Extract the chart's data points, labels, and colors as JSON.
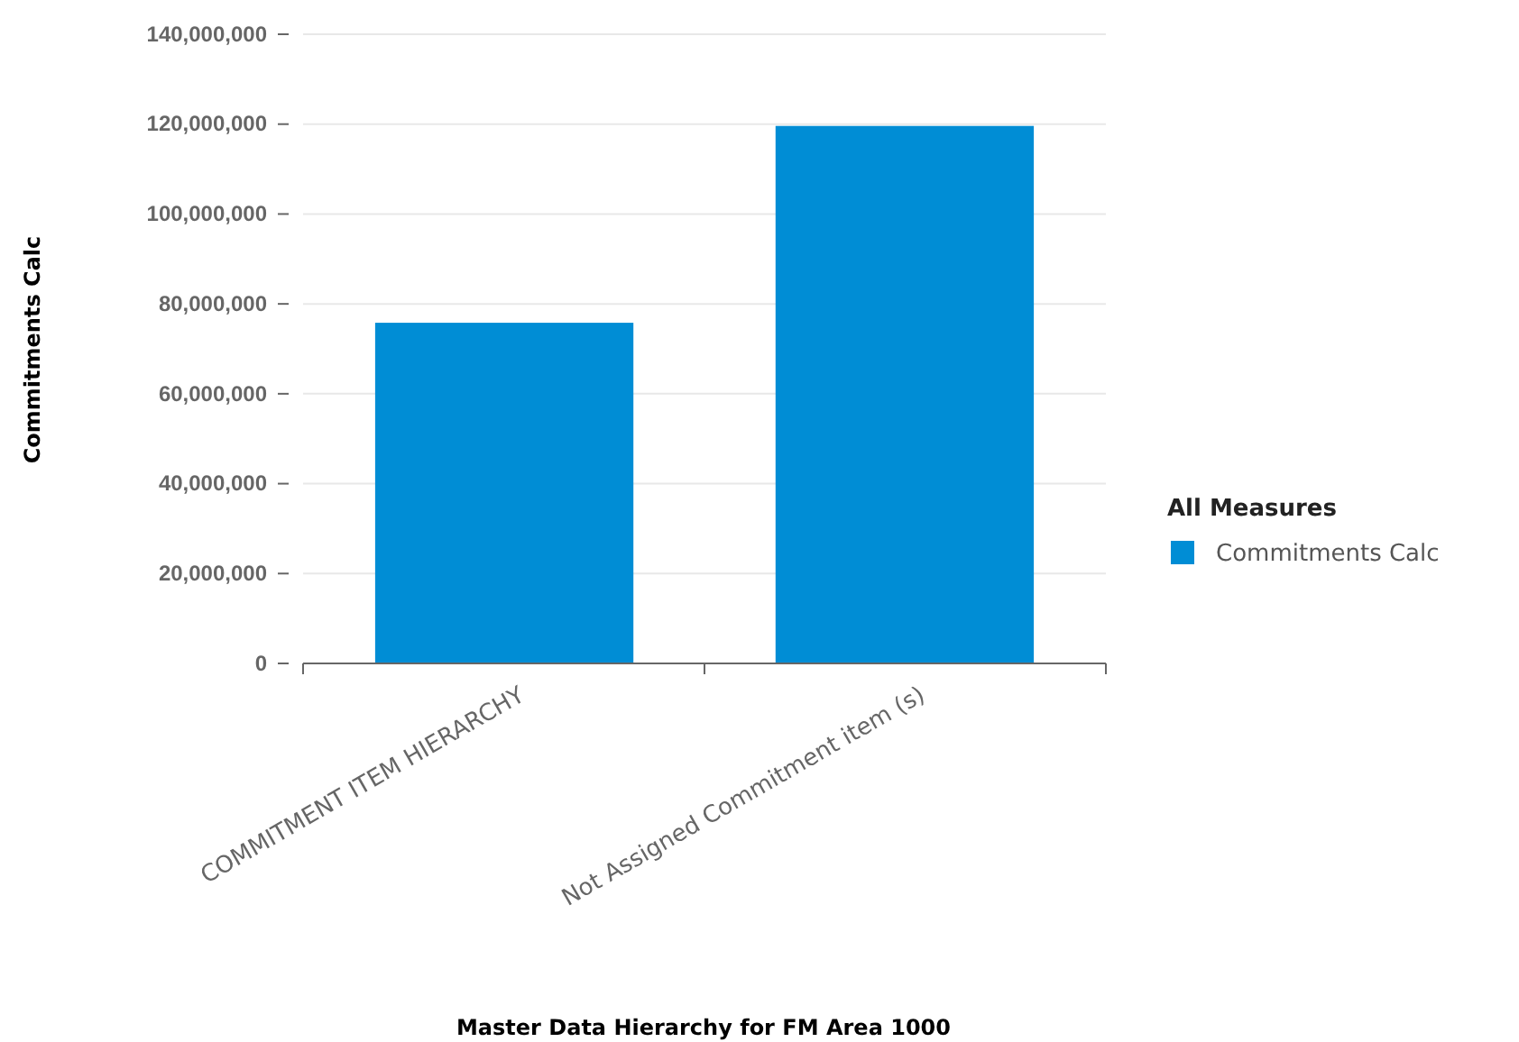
{
  "chart_data": {
    "type": "bar",
    "xlabel": "Master Data Hierarchy for FM Area 1000",
    "ylabel": "Commitments Calc",
    "legend_title": "All Measures",
    "legend": "right",
    "categories": [
      "COMMITMENT ITEM HIERARCHY",
      "Not Assigned Commitment item (s)"
    ],
    "series": [
      {
        "name": "Commitments Calc",
        "color": "#008dd5",
        "values": [
          75800000,
          119600000
        ]
      }
    ],
    "ylim": [
      0,
      140000000
    ],
    "yticks": [
      {
        "value": 0,
        "label": "0"
      },
      {
        "value": 20000000,
        "label": "20,000,000"
      },
      {
        "value": 40000000,
        "label": "40,000,000"
      },
      {
        "value": 60000000,
        "label": "60,000,000"
      },
      {
        "value": 80000000,
        "label": "80,000,000"
      },
      {
        "value": 100000000,
        "label": "100,000,000"
      },
      {
        "value": 120000000,
        "label": "120,000,000"
      },
      {
        "value": 140000000,
        "label": "140,000,000"
      }
    ],
    "grid": "y"
  }
}
